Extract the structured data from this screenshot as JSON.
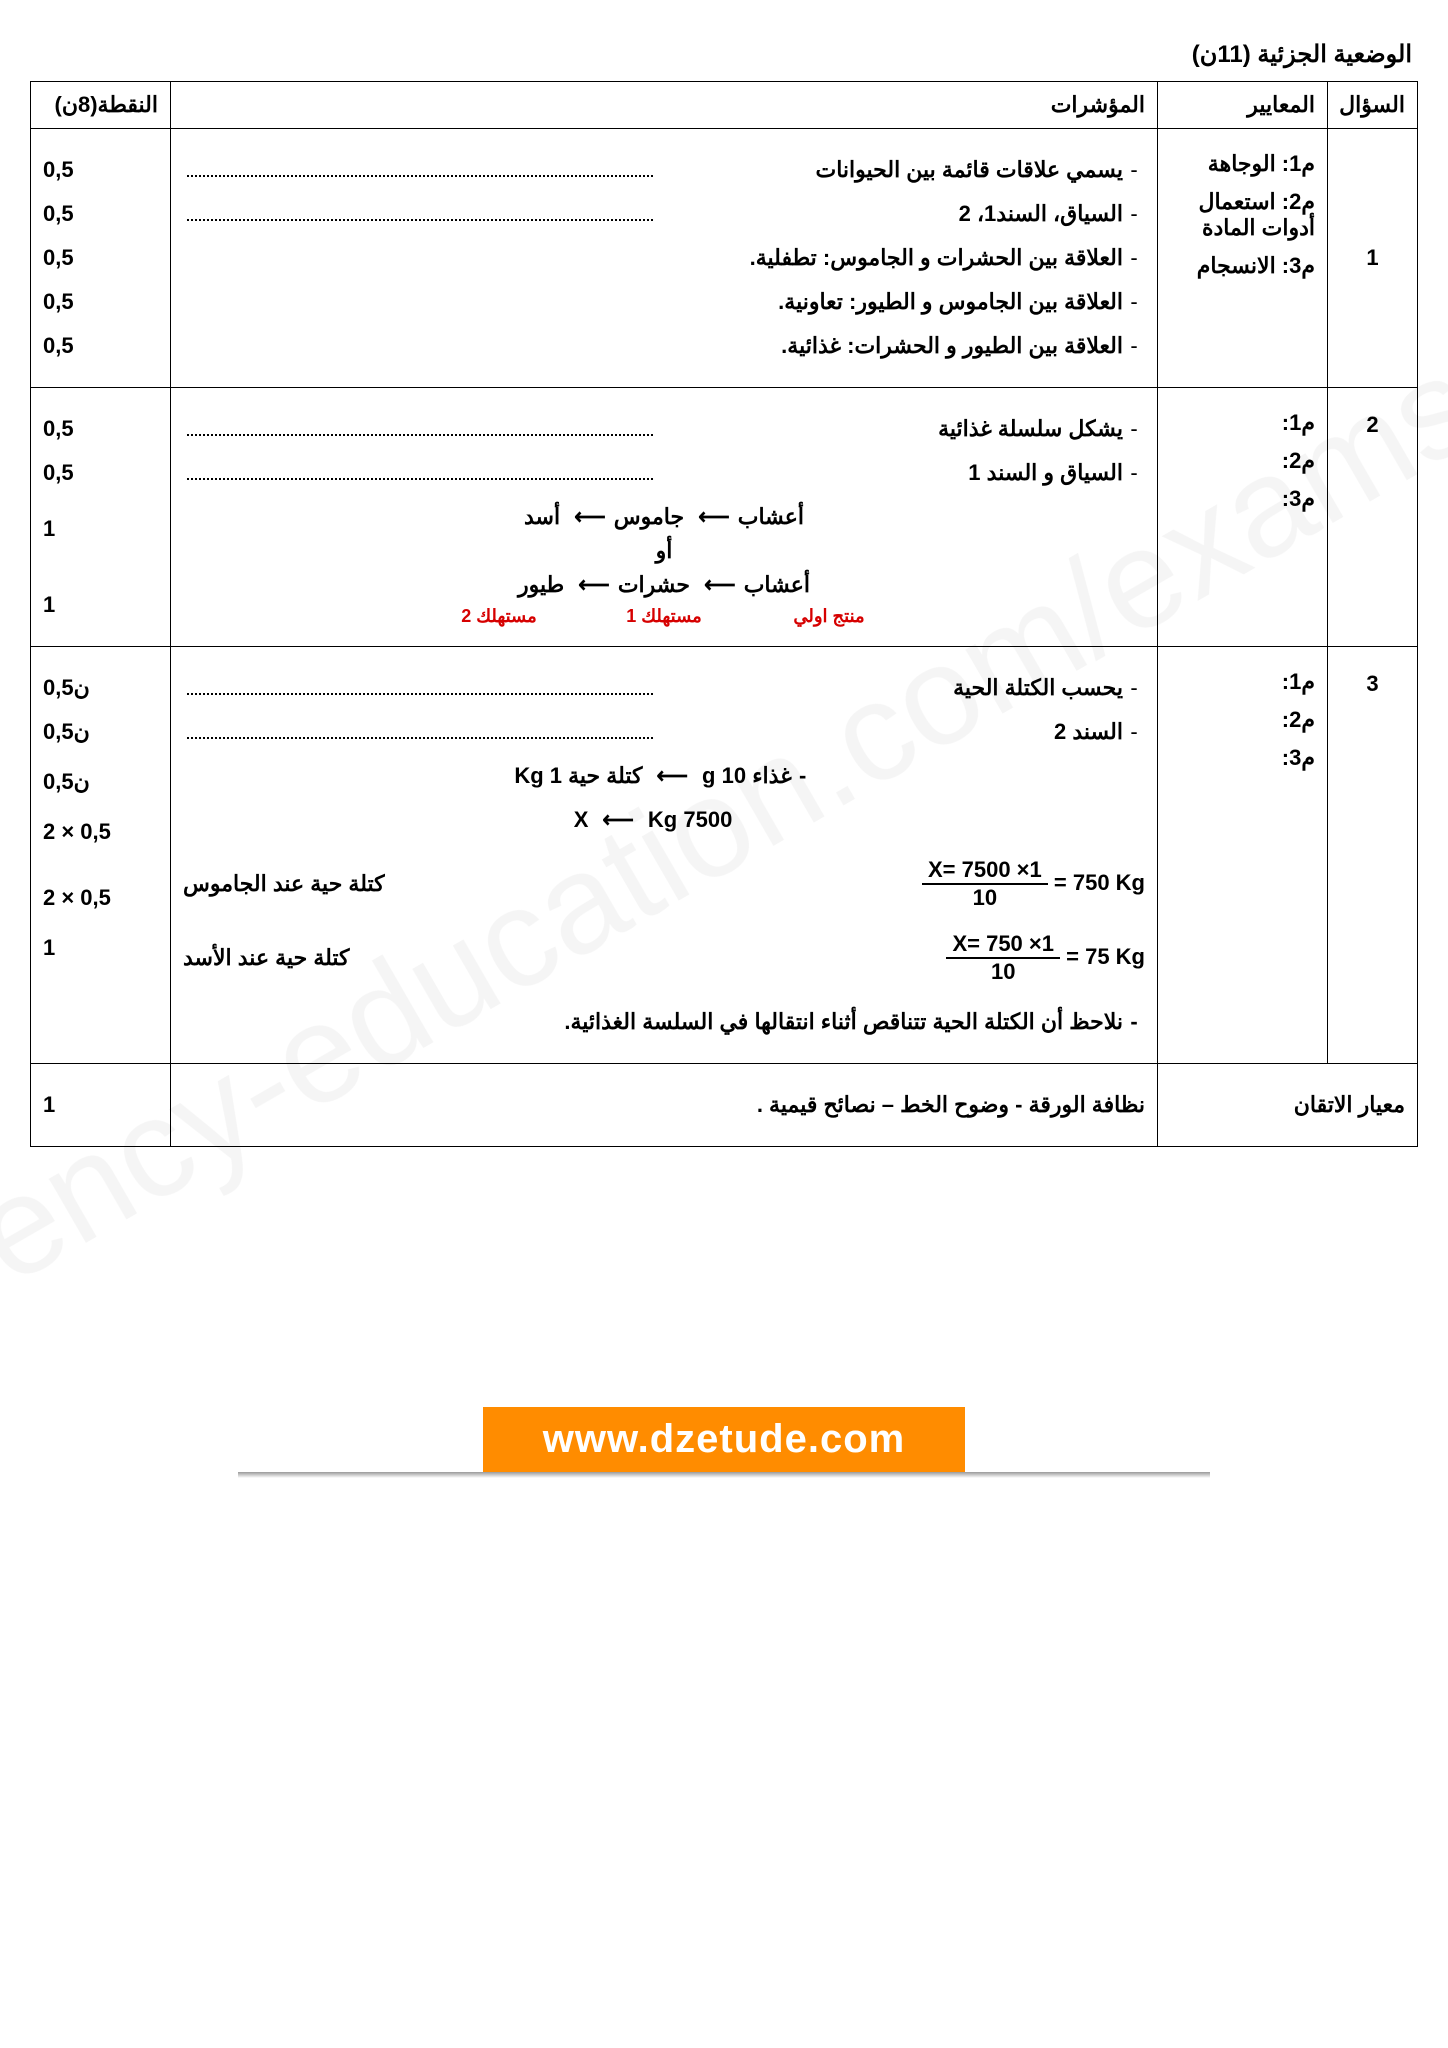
{
  "title": "الوضعية الجزئية (11ن)",
  "watermark": "ency-education.com/exams",
  "headers": {
    "question": "السؤال",
    "criteria": "المعايير",
    "indicators": "المؤشرات",
    "points": "النقطة(8ن)"
  },
  "q1": {
    "num": "1",
    "criteria": [
      "م1: الوجاهة",
      "م2: استعمال أدوات المادة",
      "م3: الانسجام"
    ],
    "indicators": [
      {
        "text": "يسمي علاقات قائمة بين الحيوانات",
        "dotted": true,
        "points": "0,5"
      },
      {
        "text": "السياق، السند1، 2",
        "dotted": true,
        "points": "0,5"
      },
      {
        "text": "العلاقة بين الحشرات و الجاموس: تطفلية.",
        "dotted": false,
        "points": "0,5"
      },
      {
        "text": "العلاقة بين الجاموس و الطيور: تعاونية.",
        "dotted": false,
        "points": "0,5"
      },
      {
        "text": "العلاقة بين الطيور و الحشرات: غذائية.",
        "dotted": false,
        "points": "0,5"
      }
    ]
  },
  "q2": {
    "num": "2",
    "criteria": [
      "م1:",
      "م2:",
      "م3:"
    ],
    "ind1": {
      "text": "يشكل سلسلة غذائية",
      "points": "0,5"
    },
    "ind2": {
      "text": "السياق و السند 1",
      "points": "0,5"
    },
    "chain1": {
      "a": "أعشاب",
      "b": "جاموس",
      "c": "أسد",
      "points": "1"
    },
    "or": "أو",
    "chain2": {
      "a": "أعشاب",
      "b": "حشرات",
      "c": "طيور",
      "points": "1"
    },
    "labels": {
      "a": "منتج اولي",
      "b": "مستهلك 1",
      "c": "مستهلك 2"
    },
    "arrow": "⟵"
  },
  "q3": {
    "num": "3",
    "criteria": [
      "م1:",
      "م2:",
      "م3:"
    ],
    "ind1": {
      "text": "يحسب الكتلة الحية",
      "points": "0,5ن"
    },
    "ind2": {
      "text": "السند 2",
      "points": "0,5ن"
    },
    "rule": {
      "food": "غذاء 10 g",
      "arrow": "⟵",
      "mass": "كتلة حية 1 Kg",
      "val": "7500 Kg",
      "x": "X",
      "points": "0,5ن"
    },
    "calc1": {
      "label_ar": "كتلة حية عند الجاموس",
      "expr_num": "X= 7500 ×1",
      "expr_den": "10",
      "result": "= 750 Kg",
      "points": "2 × 0,5"
    },
    "calc2": {
      "label_ar": "كتلة حية عند الأسد",
      "expr_num": "X= 750 ×1",
      "expr_den": "10",
      "result": "= 75 Kg",
      "points": "2 × 0,5"
    },
    "conclusion": {
      "text": "نلاحظ أن الكتلة الحية تتناقص أثناء انتقالها في السلسة الغذائية.",
      "points": "1"
    }
  },
  "mastery": {
    "label": "معيار الاتقان",
    "text": "نظافة الورقة - وضوح الخط – نصائح قيمية .",
    "points": "1"
  },
  "banner": "www.dzetude.com",
  "colors": {
    "accent_red": "#d60000",
    "banner_bg": "#ff8c00",
    "banner_fg": "#ffffff",
    "border": "#000000"
  }
}
